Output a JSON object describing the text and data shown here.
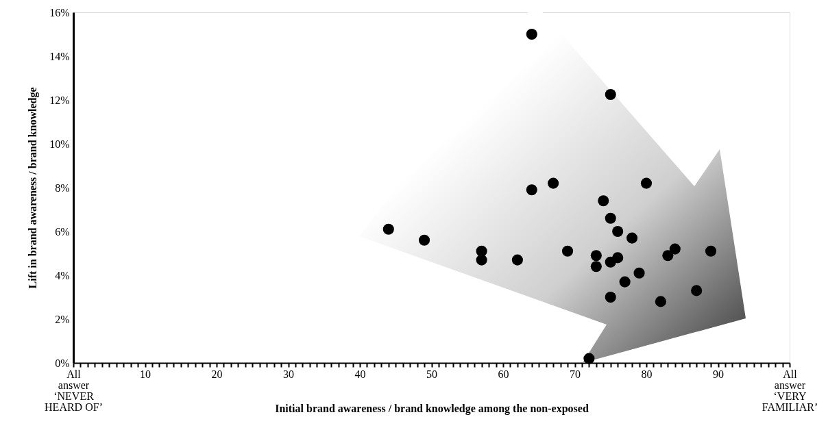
{
  "chart_data": {
    "type": "scatter",
    "xlabel": "Initial brand awareness / brand knowledge among the non-exposed",
    "ylabel": "Lift in brand awareness / brand knowledge",
    "x": [
      64,
      75,
      64,
      67,
      80,
      74,
      75,
      76,
      78,
      44,
      49,
      57,
      57,
      62,
      69,
      73,
      73,
      76,
      75,
      84,
      83,
      89,
      79,
      77,
      75,
      82,
      87,
      72
    ],
    "series": [
      {
        "color": "#000000",
        "values": [
          15,
          12.25,
          7.9,
          8.2,
          8.2,
          7.4,
          6.6,
          6.0,
          5.7,
          6.1,
          5.6,
          5.1,
          4.7,
          4.7,
          5.1,
          4.9,
          4.4,
          4.8,
          4.6,
          5.2,
          4.9,
          5.1,
          4.1,
          3.7,
          3.0,
          2.8,
          3.3,
          0.2
        ]
      }
    ],
    "marker": "circle",
    "grid": false,
    "xlim": [
      0,
      100
    ],
    "ylim": [
      0,
      16
    ],
    "yticks": [
      {
        "value": 0,
        "label": "0%"
      },
      {
        "value": 2,
        "label": "2%"
      },
      {
        "value": 4,
        "label": "4%"
      },
      {
        "value": 6,
        "label": "6%"
      },
      {
        "value": 8,
        "label": "8%"
      },
      {
        "value": 10,
        "label": "10%"
      },
      {
        "value": 12,
        "label": "12%"
      },
      {
        "value": 14,
        "label": "14%"
      },
      {
        "value": 16,
        "label": "16%"
      }
    ],
    "xticks": [
      {
        "value": 0,
        "label": "All\nanswer\n‘NEVER\nHEARD OF’"
      },
      {
        "value": 1,
        "label": null
      },
      {
        "value": 2,
        "label": null
      },
      {
        "value": 3,
        "label": null
      },
      {
        "value": 4,
        "label": null
      },
      {
        "value": 5,
        "label": null
      },
      {
        "value": 6,
        "label": null
      },
      {
        "value": 7,
        "label": null
      },
      {
        "value": 8,
        "label": null
      },
      {
        "value": 9,
        "label": null
      },
      10,
      {
        "value": 11,
        "label": null
      },
      {
        "value": 12,
        "label": null
      },
      {
        "value": 13,
        "label": null
      },
      {
        "value": 14,
        "label": null
      },
      {
        "value": 15,
        "label": null
      },
      {
        "value": 16,
        "label": null
      },
      {
        "value": 17,
        "label": null
      },
      {
        "value": 18,
        "label": null
      },
      {
        "value": 19,
        "label": null
      },
      20,
      {
        "value": 21,
        "label": null
      },
      {
        "value": 22,
        "label": null
      },
      {
        "value": 23,
        "label": null
      },
      {
        "value": 24,
        "label": null
      },
      {
        "value": 25,
        "label": null
      },
      {
        "value": 26,
        "label": null
      },
      {
        "value": 27,
        "label": null
      },
      {
        "value": 28,
        "label": null
      },
      {
        "value": 29,
        "label": null
      },
      30,
      {
        "value": 31,
        "label": null
      },
      {
        "value": 32,
        "label": null
      },
      {
        "value": 33,
        "label": null
      },
      {
        "value": 34,
        "label": null
      },
      {
        "value": 35,
        "label": null
      },
      {
        "value": 36,
        "label": null
      },
      {
        "value": 37,
        "label": null
      },
      {
        "value": 38,
        "label": null
      },
      {
        "value": 39,
        "label": null
      },
      40,
      {
        "value": 41,
        "label": null
      },
      {
        "value": 42,
        "label": null
      },
      {
        "value": 43,
        "label": null
      },
      {
        "value": 44,
        "label": null
      },
      {
        "value": 45,
        "label": null
      },
      {
        "value": 46,
        "label": null
      },
      {
        "value": 47,
        "label": null
      },
      {
        "value": 48,
        "label": null
      },
      {
        "value": 49,
        "label": null
      },
      50,
      {
        "value": 51,
        "label": null
      },
      {
        "value": 52,
        "label": null
      },
      {
        "value": 53,
        "label": null
      },
      {
        "value": 54,
        "label": null
      },
      {
        "value": 55,
        "label": null
      },
      {
        "value": 56,
        "label": null
      },
      {
        "value": 57,
        "label": null
      },
      {
        "value": 58,
        "label": null
      },
      {
        "value": 59,
        "label": null
      },
      60,
      {
        "value": 61,
        "label": null
      },
      {
        "value": 62,
        "label": null
      },
      {
        "value": 63,
        "label": null
      },
      {
        "value": 64,
        "label": null
      },
      {
        "value": 65,
        "label": null
      },
      {
        "value": 66,
        "label": null
      },
      {
        "value": 67,
        "label": null
      },
      {
        "value": 68,
        "label": null
      },
      {
        "value": 69,
        "label": null
      },
      70,
      {
        "value": 71,
        "label": null
      },
      {
        "value": 72,
        "label": null
      },
      {
        "value": 73,
        "label": null
      },
      {
        "value": 74,
        "label": null
      },
      {
        "value": 75,
        "label": null
      },
      {
        "value": 76,
        "label": null
      },
      {
        "value": 77,
        "label": null
      },
      {
        "value": 78,
        "label": null
      },
      {
        "value": 79,
        "label": null
      },
      80,
      {
        "value": 81,
        "label": null
      },
      {
        "value": 82,
        "label": null
      },
      {
        "value": 83,
        "label": null
      },
      {
        "value": 84,
        "label": null
      },
      {
        "value": 85,
        "label": null
      },
      {
        "value": 86,
        "label": null
      },
      {
        "value": 87,
        "label": null
      },
      {
        "value": 88,
        "label": null
      },
      {
        "value": 89,
        "label": null
      },
      90,
      {
        "value": 91,
        "label": null
      },
      {
        "value": 92,
        "label": null
      },
      {
        "value": 93,
        "label": null
      },
      {
        "value": 94,
        "label": null
      },
      {
        "value": 95,
        "label": null
      },
      {
        "value": 96,
        "label": null
      },
      {
        "value": 97,
        "label": null
      },
      {
        "value": 98,
        "label": null
      },
      {
        "value": 99,
        "label": null
      },
      {
        "value": 100,
        "label": "All\nanswer\n‘VERY\nFAMILIAR’"
      }
    ]
  }
}
